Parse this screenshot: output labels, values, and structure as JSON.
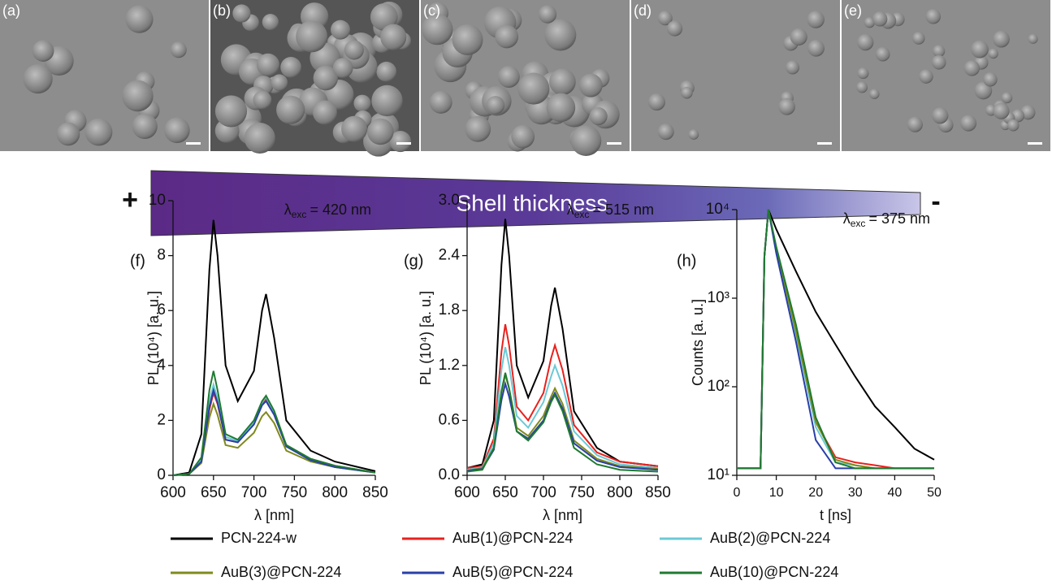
{
  "panels": [
    "(a)",
    "(b)",
    "(c)",
    "(d)",
    "(e)"
  ],
  "shell": {
    "label": "Shell thickness",
    "plus": "+",
    "minus": "-"
  },
  "chart_data": [
    {
      "type": "line",
      "panel": "(f)",
      "xlabel": "λ [nm]",
      "ylabel": "PL (10⁴) [a. u.]",
      "annotation": {
        "symbol": "λ",
        "subscript": "exc",
        "text": "= 420 nm"
      },
      "xlim": [
        600,
        850
      ],
      "xticks": [
        600,
        650,
        700,
        750,
        800,
        850
      ],
      "ylim": [
        0,
        10
      ],
      "yticks": [
        0,
        2,
        4,
        6,
        8,
        10
      ],
      "log_y": false,
      "x": [
        600,
        620,
        635,
        645,
        650,
        655,
        665,
        680,
        700,
        710,
        715,
        725,
        740,
        770,
        800,
        850
      ],
      "series": [
        {
          "name": "PCN-224-w",
          "color": "#000000",
          "values": [
            0,
            0.1,
            1.5,
            7.5,
            9.3,
            8.0,
            4.0,
            2.7,
            3.8,
            6.0,
            6.6,
            5.0,
            2.0,
            0.9,
            0.5,
            0.15
          ]
        },
        {
          "name": "AuB(1)@PCN-224",
          "color": "#e8211d",
          "values": [
            0,
            0.05,
            0.5,
            2.4,
            3.0,
            2.6,
            1.3,
            1.2,
            1.9,
            2.6,
            2.8,
            2.3,
            1.1,
            0.6,
            0.35,
            0.1
          ]
        },
        {
          "name": "AuB(2)@PCN-224",
          "color": "#6cc9d6",
          "values": [
            0,
            0.05,
            0.55,
            2.7,
            3.3,
            2.8,
            1.4,
            1.25,
            1.95,
            2.65,
            2.85,
            2.3,
            1.1,
            0.6,
            0.35,
            0.1
          ]
        },
        {
          "name": "AuB(3)@PCN-224",
          "color": "#7f8a1c",
          "values": [
            0,
            0.05,
            0.45,
            2.1,
            2.6,
            2.2,
            1.1,
            1.0,
            1.55,
            2.15,
            2.3,
            1.9,
            0.9,
            0.5,
            0.3,
            0.1
          ]
        },
        {
          "name": "AuB(5)@PCN-224",
          "color": "#2a3fa8",
          "values": [
            0,
            0.05,
            0.5,
            2.5,
            3.1,
            2.65,
            1.3,
            1.2,
            1.85,
            2.55,
            2.7,
            2.2,
            1.05,
            0.55,
            0.3,
            0.1
          ]
        },
        {
          "name": "AuB(10)@PCN-224",
          "color": "#1f7a30",
          "values": [
            0,
            0.05,
            0.65,
            3.1,
            3.8,
            3.1,
            1.5,
            1.3,
            2.0,
            2.7,
            2.9,
            2.35,
            1.1,
            0.6,
            0.35,
            0.1
          ]
        }
      ]
    },
    {
      "type": "line",
      "panel": "(g)",
      "xlabel": "λ [nm]",
      "ylabel": "PL (10⁴) [a. u.]",
      "annotation": {
        "symbol": "λ",
        "subscript": "exc",
        "text": "= 515 nm"
      },
      "xlim": [
        600,
        850
      ],
      "xticks": [
        600,
        650,
        700,
        750,
        800,
        850
      ],
      "ylim": [
        0,
        3
      ],
      "yticks": [
        {
          "value": 0,
          "label": "0.0"
        },
        0.6,
        1.2,
        1.8,
        2.4,
        {
          "value": 3,
          "label": "3.0"
        }
      ],
      "log_y": false,
      "x": [
        600,
        620,
        635,
        645,
        650,
        655,
        665,
        680,
        700,
        710,
        715,
        725,
        740,
        770,
        800,
        850
      ],
      "series": [
        {
          "name": "PCN-224-w",
          "color": "#000000",
          "values": [
            0.08,
            0.12,
            0.6,
            2.3,
            2.8,
            2.4,
            1.2,
            0.85,
            1.25,
            1.85,
            2.05,
            1.6,
            0.7,
            0.3,
            0.15,
            0.1
          ]
        },
        {
          "name": "AuB(1)@PCN-224",
          "color": "#e8211d",
          "values": [
            0.08,
            0.1,
            0.4,
            1.35,
            1.65,
            1.42,
            0.75,
            0.6,
            0.9,
            1.28,
            1.42,
            1.15,
            0.55,
            0.25,
            0.15,
            0.1
          ]
        },
        {
          "name": "AuB(2)@PCN-224",
          "color": "#6cc9d6",
          "values": [
            0.06,
            0.09,
            0.35,
            1.15,
            1.4,
            1.2,
            0.65,
            0.52,
            0.8,
            1.08,
            1.2,
            0.98,
            0.48,
            0.22,
            0.12,
            0.08
          ]
        },
        {
          "name": "AuB(3)@PCN-224",
          "color": "#7f8a1c",
          "values": [
            0.05,
            0.08,
            0.3,
            0.9,
            1.1,
            0.95,
            0.52,
            0.43,
            0.65,
            0.86,
            0.95,
            0.78,
            0.38,
            0.18,
            0.1,
            0.07
          ]
        },
        {
          "name": "AuB(5)@PCN-224",
          "color": "#2a3fa8",
          "values": [
            0.05,
            0.07,
            0.28,
            0.82,
            1.0,
            0.86,
            0.48,
            0.4,
            0.6,
            0.82,
            0.9,
            0.73,
            0.35,
            0.16,
            0.09,
            0.06
          ]
        },
        {
          "name": "AuB(10)@PCN-224",
          "color": "#1f7a30",
          "values": [
            0.04,
            0.06,
            0.3,
            0.92,
            1.12,
            0.95,
            0.48,
            0.38,
            0.58,
            0.8,
            0.88,
            0.7,
            0.3,
            0.12,
            0.06,
            0.04
          ]
        }
      ]
    },
    {
      "type": "line",
      "panel": "(h)",
      "xlabel": "t [ns]",
      "ylabel": "Counts [a. u.]",
      "annotation": {
        "symbol": "λ",
        "subscript": "exc",
        "text": "= 375 nm"
      },
      "xlim": [
        0,
        50
      ],
      "xticks": [
        0,
        10,
        20,
        30,
        40,
        50
      ],
      "ylim": [
        10,
        10000
      ],
      "yticks": [
        {
          "value": 10,
          "label": "10¹"
        },
        {
          "value": 100,
          "label": "10²"
        },
        {
          "value": 1000,
          "label": "10³"
        },
        {
          "value": 10000,
          "label": "10⁴"
        }
      ],
      "log_y": true,
      "x": [
        0,
        6,
        7,
        8,
        10,
        15,
        20,
        25,
        30,
        35,
        40,
        45,
        50
      ],
      "series": [
        {
          "name": "PCN-224-w",
          "color": "#000000",
          "values": [
            12,
            12,
            3000,
            10000,
            6000,
            2000,
            700,
            300,
            130,
            60,
            35,
            20,
            15
          ]
        },
        {
          "name": "AuB(1)@PCN-224",
          "color": "#e8211d",
          "values": [
            12,
            12,
            3000,
            10000,
            3500,
            400,
            40,
            16,
            14,
            13,
            12,
            12,
            12
          ]
        },
        {
          "name": "AuB(2)@PCN-224",
          "color": "#6cc9d6",
          "values": [
            12,
            12,
            3000,
            10000,
            3400,
            380,
            35,
            14,
            13,
            12,
            12,
            12,
            12
          ]
        },
        {
          "name": "AuB(3)@PCN-224",
          "color": "#7f8a1c",
          "values": [
            12,
            12,
            3000,
            10000,
            3600,
            420,
            40,
            15,
            13,
            12,
            12,
            12,
            12
          ]
        },
        {
          "name": "AuB(5)@PCN-224",
          "color": "#2a3fa8",
          "values": [
            12,
            12,
            3000,
            10000,
            3200,
            320,
            25,
            12,
            12,
            12,
            12,
            12,
            12
          ]
        },
        {
          "name": "AuB(10)@PCN-224",
          "color": "#1f7a30",
          "values": [
            12,
            12,
            3000,
            10000,
            3800,
            500,
            45,
            14,
            12,
            12,
            12,
            12,
            12
          ]
        }
      ]
    }
  ]
}
